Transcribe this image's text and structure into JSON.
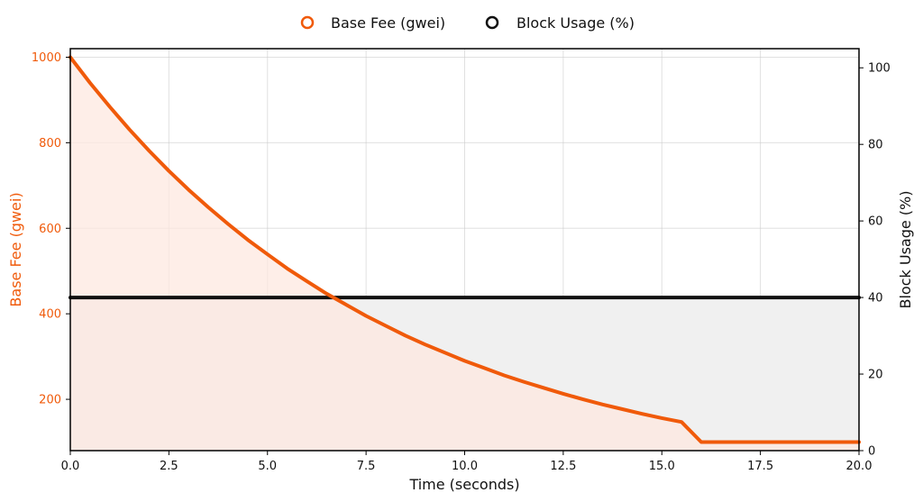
{
  "chart_data": {
    "type": "line",
    "title": "",
    "xlabel": "Time (seconds)",
    "ylabel_left": "Base Fee (gwei)",
    "ylabel_right": "Block Usage (%)",
    "xlim": [
      0,
      20
    ],
    "ylim_left": [
      80,
      1020
    ],
    "ylim_right": [
      0,
      105
    ],
    "x_ticks": [
      "0.0",
      "2.5",
      "5.0",
      "7.5",
      "10.0",
      "12.5",
      "15.0",
      "17.5",
      "20.0"
    ],
    "y_ticks_left": [
      "200",
      "400",
      "600",
      "800",
      "1000"
    ],
    "y_ticks_right": [
      "0",
      "20",
      "40",
      "60",
      "80",
      "100"
    ],
    "grid": true,
    "legend_position": "top-center",
    "series": [
      {
        "name": "Base Fee (gwei)",
        "axis": "left",
        "color": "#f05a0a",
        "fill": "#fde8e0",
        "x": [
          0,
          0.5,
          1,
          1.5,
          2,
          2.5,
          3,
          3.5,
          4,
          4.5,
          5,
          5.5,
          6,
          6.5,
          7,
          7.5,
          8,
          8.5,
          9,
          9.5,
          10,
          10.5,
          11,
          11.5,
          12,
          12.5,
          13,
          13.5,
          14,
          14.5,
          15,
          15.5,
          16,
          16.5,
          17,
          17.5,
          18,
          18.5,
          19,
          19.5,
          20
        ],
        "y": [
          1000,
          940,
          884,
          831,
          781,
          734,
          690,
          649,
          610,
          573,
          539,
          506,
          476,
          447,
          421,
          395,
          372,
          349,
          328,
          309,
          290,
          273,
          256,
          241,
          227,
          213,
          200,
          188,
          177,
          166,
          156,
          147,
          100,
          100,
          100,
          100,
          100,
          100,
          100,
          100,
          100
        ]
      },
      {
        "name": "Block Usage (%)",
        "axis": "right",
        "color": "#111111",
        "fill": "#f0f0f0",
        "x": [
          0,
          20
        ],
        "y": [
          40,
          40
        ]
      }
    ]
  }
}
